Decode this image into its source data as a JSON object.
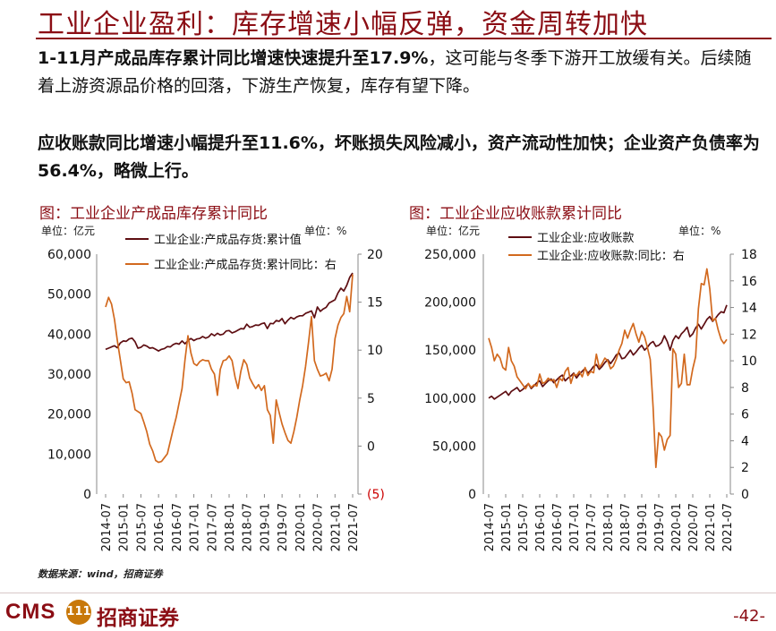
{
  "page": {
    "title": "工业企业盈利：库存增速小幅反弹，资金周转加快",
    "para1_bold": "1-11月产成品库存累计同比增速快速提升至17.9%",
    "para1_rest": "，这可能与冬季下游开工放缓有关。后续随着上游资源品价格的回落，下游生产恢复，库存有望下降。",
    "para2": "应收账款同比增速小幅提升至11.6%，坏账损失风险减小，资产流动性加快；企业资产负债率为56.4%，略微上行。",
    "source": "数据来源：wind，招商证券",
    "logo_cms": "CMS",
    "logo_mark": "111",
    "logo_cn": "招商证券",
    "page_number": "-42-"
  },
  "colors": {
    "level": "#5e0e12",
    "yoy": "#d2691e",
    "brand": "#8b0d14"
  },
  "chart_data": [
    {
      "type": "line",
      "title": "图：工业企业产成品库存累计同比",
      "unit_left": "单位：亿元",
      "unit_right": "单位：%",
      "ylim_left": [
        0,
        60000
      ],
      "yticks_left": [
        "0",
        "10,000",
        "20,000",
        "30,000",
        "40,000",
        "50,000",
        "60,000"
      ],
      "ylim_right": [
        -5,
        20
      ],
      "yticks_right": [
        "(5)",
        "0",
        "5",
        "10",
        "15",
        "20"
      ],
      "xticks": [
        "2014-07",
        "2015-01",
        "2015-07",
        "2016-01",
        "2016-07",
        "2017-01",
        "2017-07",
        "2018-01",
        "2018-07",
        "2019-01",
        "2019-07",
        "2020-01",
        "2020-07",
        "2021-01",
        "2021-07"
      ],
      "series": [
        {
          "name": "工业企业:产成品存货:累计值",
          "axis": "left",
          "values": [
            36200,
            36500,
            36800,
            37100,
            36600,
            37800,
            38300,
            38200,
            38800,
            39000,
            38100,
            36500,
            36700,
            37300,
            37000,
            36500,
            36600,
            36200,
            35800,
            36200,
            36400,
            36900,
            36800,
            37400,
            37700,
            37500,
            38300,
            37600,
            38400,
            38900,
            38400,
            38800,
            38900,
            39400,
            39000,
            39300,
            40100,
            39600,
            40200,
            39800,
            40000,
            40800,
            40900,
            40300,
            40600,
            41000,
            41400,
            41300,
            42500,
            41700,
            41900,
            42300,
            42200,
            42600,
            42800,
            41400,
            42700,
            42600,
            43400,
            43200,
            43900,
            42600,
            43500,
            44200,
            43800,
            44300,
            44600,
            44600,
            45200,
            45500,
            45800,
            44100,
            46800,
            45700,
            46300,
            46700,
            47800,
            48200,
            48600,
            50300,
            51500,
            50800,
            52200,
            54200,
            55300
          ]
        },
        {
          "name": "工业企业:产成品存货:累计同比：右",
          "axis": "right",
          "values": [
            14.5,
            15.5,
            14.8,
            13.2,
            11.0,
            9.0,
            7.0,
            6.6,
            6.7,
            5.5,
            3.8,
            3.6,
            3.4,
            2.5,
            1.5,
            0.2,
            -0.5,
            -1.5,
            -1.7,
            -1.6,
            -1.2,
            -0.8,
            0.5,
            1.8,
            3.0,
            4.5,
            6.0,
            9.0,
            11.5,
            9.7,
            8.6,
            8.4,
            8.8,
            9.0,
            8.9,
            8.9,
            8.0,
            7.5,
            5.3,
            8.0,
            8.9,
            9.0,
            9.4,
            8.9,
            7.2,
            6.0,
            7.8,
            9.0,
            8.5,
            7.1,
            6.5,
            6.0,
            6.4,
            5.8,
            6.3,
            3.8,
            3.2,
            0.3,
            4.8,
            3.5,
            2.3,
            1.4,
            0.6,
            0.3,
            1.5,
            3.0,
            4.8,
            6.3,
            8.3,
            10.8,
            13.5,
            8.9,
            8.0,
            7.3,
            7.4,
            7.6,
            6.8,
            8.0,
            11.2,
            12.6,
            13.4,
            13.8,
            15.6,
            14.0,
            17.9
          ]
        }
      ]
    },
    {
      "type": "line",
      "title": "图：工业企业应收账款累计同比",
      "unit_left": "单位：亿元",
      "unit_right": "单位：%",
      "ylim_left": [
        0,
        250000
      ],
      "yticks_left": [
        "0",
        "50,000",
        "100,000",
        "150,000",
        "200,000",
        "250,000"
      ],
      "ylim_right": [
        0,
        18
      ],
      "yticks_right": [
        "0",
        "2",
        "4",
        "6",
        "8",
        "10",
        "12",
        "14",
        "16",
        "18"
      ],
      "xticks": [
        "2014-07",
        "2015-01",
        "2015-07",
        "2016-01",
        "2016-07",
        "2017-01",
        "2017-07",
        "2018-01",
        "2018-07",
        "2019-01",
        "2019-07",
        "2020-01",
        "2020-07",
        "2021-01",
        "2021-07"
      ],
      "series": [
        {
          "name": "工业企业:应收账款",
          "axis": "left",
          "values": [
            100000,
            102000,
            99000,
            101000,
            103000,
            105000,
            107000,
            103000,
            107000,
            109000,
            111000,
            107000,
            109000,
            112000,
            115000,
            110000,
            113000,
            116000,
            118000,
            112000,
            115000,
            118000,
            120000,
            116000,
            119000,
            122000,
            124000,
            118000,
            121000,
            123000,
            126000,
            121000,
            125000,
            128000,
            131000,
            126000,
            129000,
            133000,
            135000,
            130000,
            133000,
            137000,
            140000,
            136000,
            140000,
            145000,
            147000,
            141000,
            142000,
            146000,
            150000,
            145000,
            148000,
            152000,
            155000,
            150000,
            153000,
            157000,
            159000,
            154000,
            155000,
            158000,
            165000,
            159000,
            150000,
            160000,
            165000,
            162000,
            167000,
            170000,
            174000,
            164000,
            167000,
            173000,
            177000,
            172000,
            177000,
            182000,
            185000,
            180000,
            183000,
            187000,
            190000,
            189000,
            197000
          ]
        },
        {
          "name": "工业企业:应收账款:同比：右",
          "axis": "right",
          "values": [
            11.7,
            11.0,
            10.0,
            10.5,
            10.2,
            9.5,
            9.3,
            11.0,
            10.0,
            9.6,
            8.8,
            8.5,
            8.2,
            7.9,
            8.3,
            8.0,
            8.2,
            8.1,
            9.0,
            8.3,
            8.4,
            8.7,
            8.5,
            8.6,
            8.0,
            8.7,
            8.5,
            9.2,
            9.5,
            8.3,
            9.0,
            8.9,
            9.2,
            8.8,
            9.5,
            8.9,
            9.2,
            9.1,
            10.5,
            9.5,
            9.8,
            10.2,
            10.0,
            9.4,
            9.6,
            10.1,
            10.8,
            11.3,
            12.3,
            11.7,
            12.3,
            12.8,
            12.0,
            11.4,
            12.2,
            11.8,
            11.0,
            10.1,
            6.5,
            2.0,
            4.6,
            4.3,
            3.3,
            4.1,
            4.4,
            10.9,
            10.5,
            8.0,
            8.3,
            10.5,
            8.2,
            8.2,
            9.4,
            10.3,
            13.9,
            15.8,
            15.7,
            16.9,
            15.4,
            13.0,
            13.2,
            12.3,
            11.6,
            11.3,
            11.6
          ]
        }
      ]
    }
  ]
}
